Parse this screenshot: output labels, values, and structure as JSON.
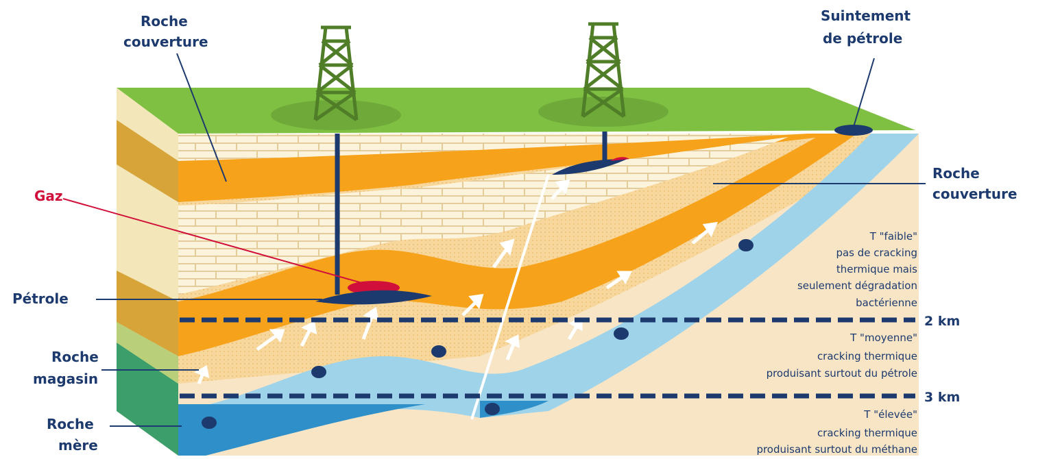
{
  "labels": [
    {
      "lines": [
        "Roche",
        "couverture"
      ]
    },
    {
      "lines": [
        "Suintement",
        "de pétrole"
      ]
    },
    {
      "lines": [
        "Roche",
        "couverture"
      ]
    },
    {
      "lines": [
        "Gaz"
      ]
    },
    {
      "lines": [
        "Pétrole"
      ]
    },
    {
      "lines": [
        "Roche",
        "magasin"
      ]
    },
    {
      "lines": [
        "Roche",
        "mère"
      ]
    }
  ],
  "depths": [
    "2 km",
    "3 km"
  ],
  "zones": [
    {
      "lines": [
        "T \"faible\"",
        "pas de cracking",
        "thermique mais",
        "seulement dégradation",
        "bactérienne"
      ]
    },
    {
      "lines": [
        "T \"moyenne\"",
        "cracking thermique",
        "produisant surtout du pétrole"
      ]
    },
    {
      "lines": [
        "T \"élevée\"",
        "cracking thermique",
        "produisant surtout du méthane"
      ]
    }
  ]
}
